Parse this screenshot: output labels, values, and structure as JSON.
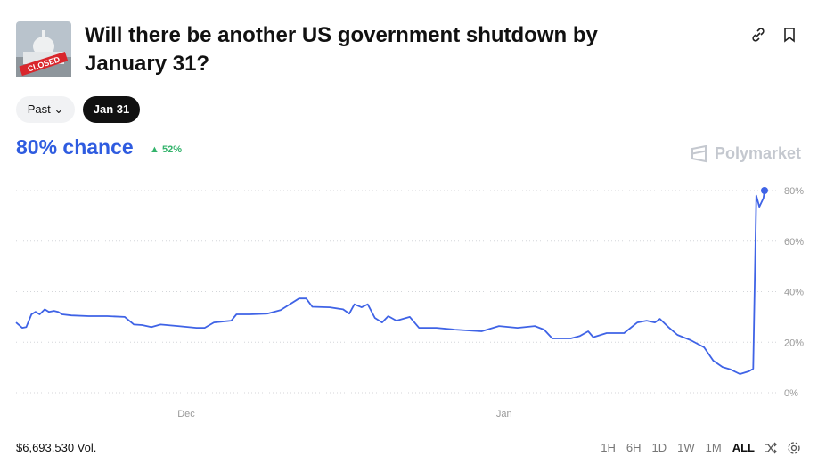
{
  "header": {
    "title": "Will there be another US government shutdown by January 31?",
    "image_text": "CLOSED"
  },
  "tabs": [
    "Past",
    "Jan 31"
  ],
  "chance": "80% chance",
  "change": "52%",
  "brand": "Polymarket",
  "chart_data": {
    "type": "line",
    "x": [
      0,
      0.6,
      1.0,
      1.5,
      1.9,
      2.3,
      2.8,
      3.2,
      3.7,
      4.1,
      4.5,
      5.4,
      7.1,
      8.9,
      10.6,
      11.5,
      12.3,
      13.2,
      14.1,
      15.8,
      17.6,
      18.4,
      19.3,
      21.0,
      21.5,
      22.8,
      24.5,
      25.8,
      26.7,
      27.6,
      28.3,
      28.9,
      30.6,
      31.9,
      32.5,
      33.0,
      33.7,
      34.3,
      35.0,
      35.7,
      36.3,
      37.1,
      38.4,
      39.3,
      41.0,
      42.8,
      45.4,
      47.1,
      48.9,
      50.6,
      51.5,
      52.3,
      54.1,
      55.0,
      55.8,
      56.3,
      57.6,
      59.3,
      60.6,
      61.5,
      62.3,
      62.8,
      63.7,
      64.5,
      65.8,
      67.1,
      68.0,
      68.9,
      69.7,
      70.6,
      71.5,
      71.9,
      72.2,
      72.5,
      72.9,
      73.0
    ],
    "series": [
      {
        "color": "#3f63e6",
        "values": [
          27.8,
          25.7,
          26,
          31,
          32,
          31,
          33,
          32,
          32.4,
          32,
          31,
          30.6,
          30.3,
          30.3,
          30,
          27,
          26.8,
          26,
          27,
          26.4,
          25.7,
          25.7,
          27.8,
          28.5,
          31,
          31,
          31.3,
          32.7,
          35,
          37.3,
          37.3,
          34,
          33.8,
          33,
          31.3,
          35,
          33.8,
          35,
          29.6,
          27.8,
          30.3,
          28.5,
          30,
          25.7,
          25.7,
          25,
          24.3,
          26.4,
          25.7,
          26.4,
          25,
          21.5,
          21.5,
          22.5,
          24.3,
          22,
          23.6,
          23.6,
          27.8,
          28.5,
          27.8,
          29.2,
          25.7,
          22.9,
          20.8,
          18,
          12.7,
          10.2,
          9.2,
          7.4,
          8.5,
          9.5,
          78,
          73.6,
          77,
          80
        ]
      }
    ],
    "xlim": [
      0,
      73
    ],
    "xticks": [
      {
        "value": 16.6,
        "label": "Dec"
      },
      {
        "value": 47.6,
        "label": "Jan"
      }
    ],
    "ylim": [
      0,
      80
    ],
    "yticks": [
      {
        "value": 0,
        "label": "0%"
      },
      {
        "value": 20,
        "label": "20%"
      },
      {
        "value": 40,
        "label": "40%"
      },
      {
        "value": 60,
        "label": "60%"
      },
      {
        "value": 80,
        "label": "80%"
      }
    ],
    "grid": true
  },
  "footer": {
    "volume": "$6,693,530 Vol.",
    "ranges": [
      "1H",
      "6H",
      "1D",
      "1W",
      "1M",
      "ALL"
    ],
    "active_range": "ALL"
  }
}
